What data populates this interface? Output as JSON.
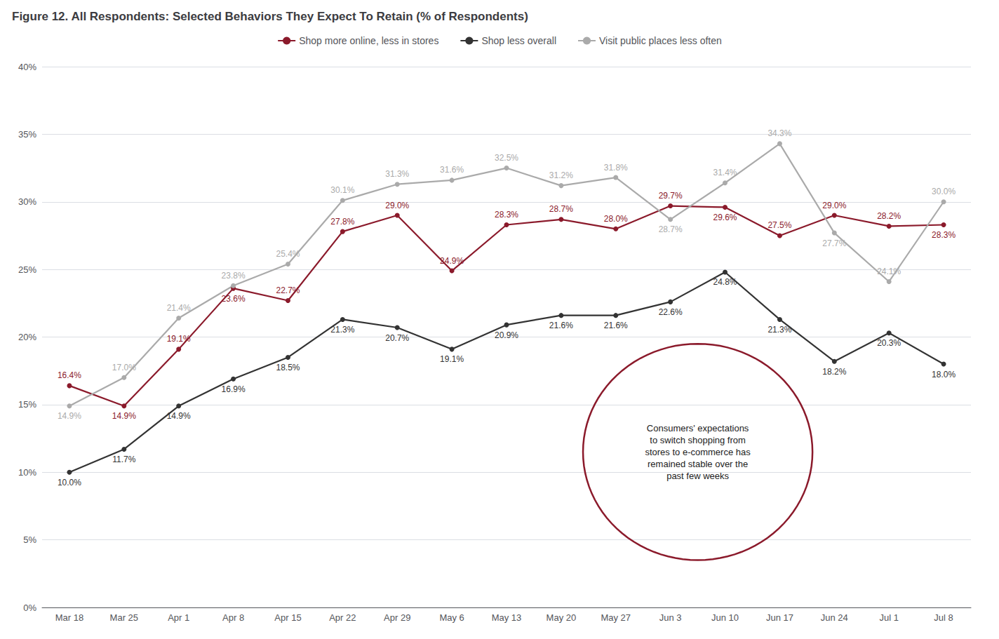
{
  "chart_data": {
    "type": "line",
    "title": "Figure 12. All Respondents: Selected Behaviors They Expect To Retain (% of Respondents)",
    "categories": [
      "Mar 18",
      "Mar 25",
      "Apr 1",
      "Apr 8",
      "Apr 15",
      "Apr 22",
      "Apr 29",
      "May 6",
      "May 13",
      "May 20",
      "May 27",
      "Jun 3",
      "Jun 10",
      "Jun 17",
      "Jun 24",
      "Jul 1",
      "Jul 8"
    ],
    "series": [
      {
        "name": "Shop more online, less in stores",
        "color": "#8B1A2B",
        "marker": "circle",
        "values": [
          16.4,
          14.9,
          19.1,
          23.6,
          22.7,
          27.8,
          29.0,
          24.9,
          28.3,
          28.7,
          28.0,
          29.7,
          29.6,
          27.5,
          29.0,
          28.2,
          28.3
        ],
        "value_labels": [
          "16.4%",
          "14.9%",
          "19.1%",
          "23.6%",
          "22.7%",
          "27.8%",
          "29.0%",
          "24.9%",
          "28.3%",
          "28.7%",
          "28.0%",
          "29.7%",
          "29.6%",
          "27.5%",
          "29.0%",
          "28.2%",
          "28.3%"
        ]
      },
      {
        "name": "Shop less overall",
        "color": "#333333",
        "marker": "circle",
        "values": [
          10.0,
          11.7,
          14.9,
          16.9,
          18.5,
          21.3,
          20.7,
          19.1,
          20.9,
          21.6,
          21.6,
          22.6,
          24.8,
          21.3,
          18.2,
          20.3,
          18.0
        ],
        "value_labels": [
          "10.0%",
          "11.7%",
          "14.9%",
          "16.9%",
          "18.5%",
          "21.3%",
          "20.7%",
          "19.1%",
          "20.9%",
          "21.6%",
          "21.6%",
          "22.6%",
          "24.8%",
          "21.3%",
          "18.2%",
          "20.3%",
          "18.0%"
        ]
      },
      {
        "name": "Visit public places less often",
        "color": "#AAAAAA",
        "marker": "circle",
        "values": [
          14.9,
          17.0,
          21.4,
          23.8,
          25.4,
          30.1,
          31.3,
          31.6,
          32.5,
          31.2,
          31.8,
          28.7,
          31.4,
          34.3,
          27.7,
          24.1,
          30.0
        ],
        "value_labels": [
          "14.9%",
          "17.0%",
          "21.4%",
          "23.8%",
          "25.4%",
          "30.1%",
          "31.3%",
          "31.6%",
          "32.5%",
          "31.2%",
          "31.8%",
          "28.7%",
          "31.4%",
          "34.3%",
          "27.7%",
          "24.1%",
          "30.0%"
        ]
      }
    ],
    "ylim": [
      0,
      40
    ],
    "yticks": [
      {
        "value": 0,
        "label": "0%"
      },
      {
        "value": 5,
        "label": "5%"
      },
      {
        "value": 10,
        "label": "10%"
      },
      {
        "value": 15,
        "label": "15%"
      },
      {
        "value": 20,
        "label": "20%"
      },
      {
        "value": 25,
        "label": "25%"
      },
      {
        "value": 30,
        "label": "30%"
      },
      {
        "value": 35,
        "label": "35%"
      },
      {
        "value": 40,
        "label": "40%"
      }
    ],
    "grid": true,
    "legend": "top",
    "data_labels": true,
    "annotations": [
      {
        "text": "Consumers' expectations\nto switch shopping from\nstores to e-commerce has\nremained stable over the\npast few weeks",
        "x": 11.5,
        "y": 11.5,
        "color": "#8B1A2B"
      }
    ]
  }
}
